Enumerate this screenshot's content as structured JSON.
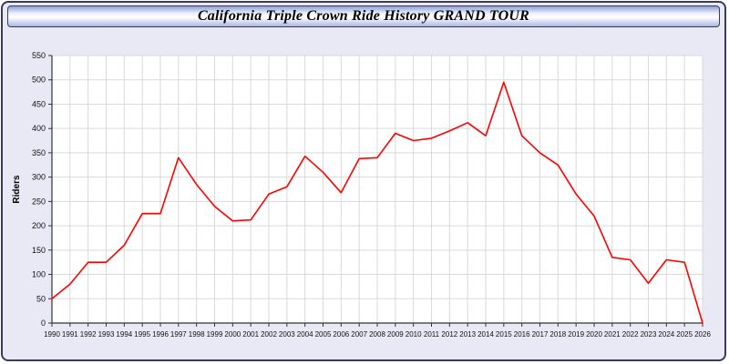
{
  "window": {
    "title": "California Triple Crown Ride History GRAND TOUR"
  },
  "chart_data": {
    "type": "line",
    "title": "California Triple Crown Ride History GRAND TOUR",
    "xlabel": "",
    "ylabel": "Riders",
    "ylim": [
      0,
      550
    ],
    "ytick_step": 50,
    "grid": true,
    "legend": "none",
    "line_color": "#ff0000",
    "x": [
      1990,
      1991,
      1992,
      1993,
      1994,
      1995,
      1996,
      1997,
      1998,
      1999,
      2000,
      2001,
      2002,
      2003,
      2004,
      2005,
      2006,
      2007,
      2008,
      2009,
      2010,
      2011,
      2012,
      2013,
      2014,
      2015,
      2016,
      2017,
      2018,
      2019,
      2020,
      2021,
      2022,
      2023,
      2024,
      2025,
      2026
    ],
    "values": [
      50,
      80,
      125,
      125,
      160,
      225,
      225,
      340,
      285,
      240,
      210,
      212,
      265,
      280,
      343,
      310,
      268,
      338,
      340,
      390,
      375,
      380,
      395,
      412,
      385,
      495,
      385,
      350,
      325,
      265,
      220,
      135,
      130,
      82,
      130,
      125,
      0
    ]
  },
  "style": {
    "grid_color": "#d9d9d9",
    "axis_color": "#333333",
    "tick_label_color": "#111111",
    "plot_bg": "#ffffff"
  }
}
